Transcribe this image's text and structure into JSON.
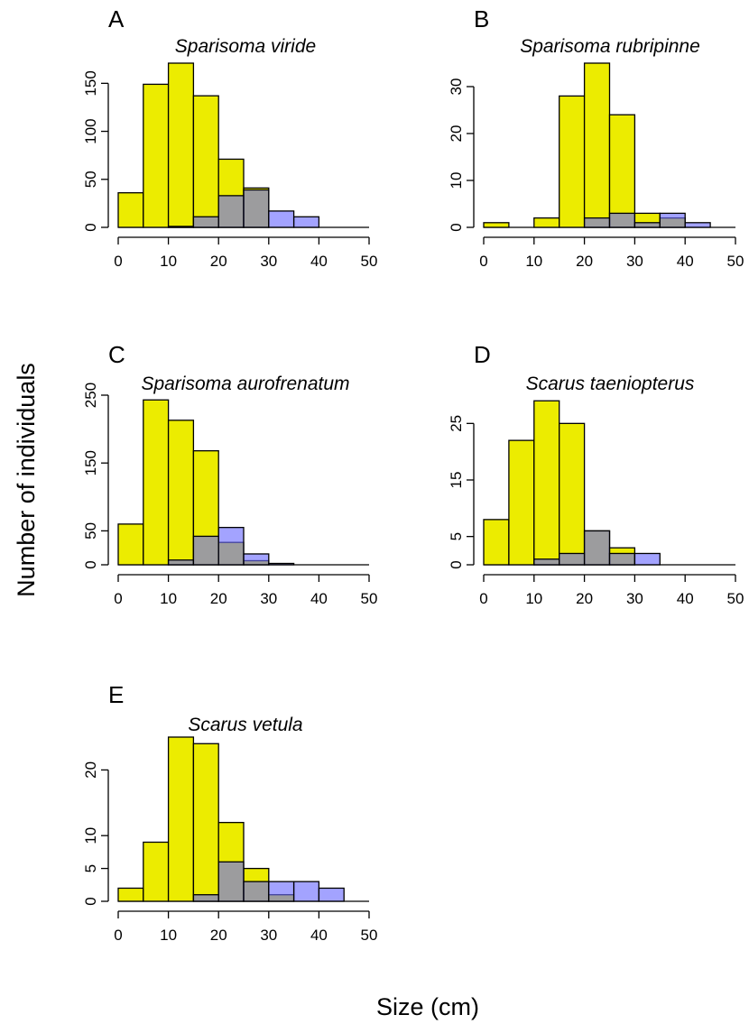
{
  "figure": {
    "ylabel": "Number of individuals",
    "xlabel": "Size (cm)"
  },
  "colors": {
    "yellow": "#ecec00",
    "blue": "#6a6aff",
    "overlap": "#5f5f9c",
    "axis": "#000000"
  },
  "chart_data": [
    {
      "type": "bar",
      "panel": "A",
      "title": "Sparisoma viride",
      "bin_edges": [
        0,
        5,
        10,
        15,
        20,
        25,
        30,
        35,
        40,
        45,
        50
      ],
      "series": [
        {
          "color": "yellow",
          "values": [
            36,
            149,
            171,
            137,
            71,
            41,
            0,
            0,
            0,
            0
          ]
        },
        {
          "color": "blue",
          "values": [
            0,
            0,
            1,
            11,
            33,
            39,
            17,
            11,
            0,
            0
          ]
        }
      ],
      "xlim": [
        0,
        50
      ],
      "ylim": [
        0,
        171
      ],
      "xticks": [
        0,
        10,
        20,
        30,
        40,
        50
      ],
      "yticks": [
        0,
        50,
        100,
        150
      ]
    },
    {
      "type": "bar",
      "panel": "B",
      "title": "Sparisoma rubripinne",
      "bin_edges": [
        0,
        5,
        10,
        15,
        20,
        25,
        30,
        35,
        40,
        45,
        50
      ],
      "series": [
        {
          "color": "yellow",
          "values": [
            1,
            0,
            2,
            28,
            35,
            24,
            3,
            2,
            0,
            0
          ]
        },
        {
          "color": "blue",
          "values": [
            0,
            0,
            0,
            0,
            2,
            3,
            1,
            3,
            1,
            0
          ]
        }
      ],
      "xlim": [
        0,
        50
      ],
      "ylim": [
        0,
        35
      ],
      "xticks": [
        0,
        10,
        20,
        30,
        40,
        50
      ],
      "yticks": [
        0,
        10,
        20,
        30
      ]
    },
    {
      "type": "bar",
      "panel": "C",
      "title": "Sparisoma aurofrenatum",
      "bin_edges": [
        0,
        5,
        10,
        15,
        20,
        25,
        30,
        35,
        40,
        45,
        50
      ],
      "series": [
        {
          "color": "yellow",
          "values": [
            60,
            243,
            213,
            168,
            33,
            6,
            0,
            0,
            0,
            0
          ]
        },
        {
          "color": "blue",
          "values": [
            0,
            0,
            7,
            42,
            55,
            16,
            2,
            0,
            0,
            0
          ]
        }
      ],
      "xlim": [
        0,
        50
      ],
      "ylim": [
        0,
        250
      ],
      "xticks": [
        0,
        10,
        20,
        30,
        40,
        50
      ],
      "yticks": [
        0,
        50,
        150,
        250
      ]
    },
    {
      "type": "bar",
      "panel": "D",
      "title": "Scarus taeniopterus",
      "bin_edges": [
        0,
        5,
        10,
        15,
        20,
        25,
        30,
        35,
        40,
        45,
        50
      ],
      "series": [
        {
          "color": "yellow",
          "values": [
            8,
            22,
            29,
            25,
            6,
            3,
            0,
            0,
            0,
            0
          ]
        },
        {
          "color": "blue",
          "values": [
            0,
            0,
            1,
            2,
            6,
            2,
            2,
            0,
            0,
            0
          ]
        }
      ],
      "xlim": [
        0,
        50
      ],
      "ylim": [
        0,
        30
      ],
      "xticks": [
        0,
        10,
        20,
        30,
        40,
        50
      ],
      "yticks": [
        0,
        5,
        15,
        25
      ]
    },
    {
      "type": "bar",
      "panel": "E",
      "title": "Scarus vetula",
      "bin_edges": [
        0,
        5,
        10,
        15,
        20,
        25,
        30,
        35,
        40,
        45,
        50
      ],
      "series": [
        {
          "color": "yellow",
          "values": [
            2,
            9,
            25,
            24,
            12,
            5,
            1,
            0,
            0,
            0
          ]
        },
        {
          "color": "blue",
          "values": [
            0,
            0,
            0,
            1,
            6,
            3,
            3,
            3,
            2,
            0
          ]
        }
      ],
      "xlim": [
        0,
        50
      ],
      "ylim": [
        0,
        25
      ],
      "xticks": [
        0,
        10,
        20,
        30,
        40,
        50
      ],
      "yticks": [
        0,
        5,
        10,
        20
      ]
    }
  ]
}
